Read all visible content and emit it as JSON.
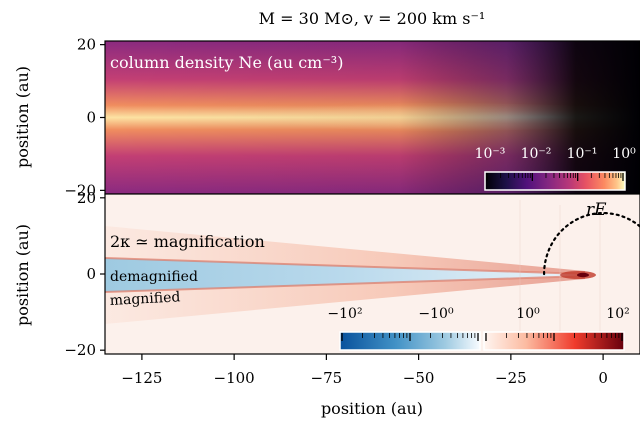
{
  "chart_data": [
    {
      "type": "heatmap",
      "title": "M = 30 M⊙, v = 200 km s⁻¹",
      "xlabel": "",
      "ylabel": "position (au)",
      "xlim": [
        -135,
        10
      ],
      "ylim": [
        -21,
        21
      ],
      "y_ticks": [
        "−20",
        "0",
        "20"
      ],
      "y_tick_values": [
        -20,
        0,
        20
      ],
      "annotation": "column density Ne (au cm⁻³)",
      "colormap": "magma",
      "colorbar": {
        "scale": "log",
        "range": [
          0.001,
          1
        ],
        "tick_labels": [
          "10⁻³",
          "10⁻²",
          "10⁻¹",
          "10⁰"
        ],
        "tick_values": [
          0.001,
          0.01,
          0.1,
          1
        ]
      }
    },
    {
      "type": "heatmap",
      "xlabel": "position (au)",
      "ylabel": "position (au)",
      "xlim": [
        -135,
        10
      ],
      "ylim": [
        -21,
        21
      ],
      "x_ticks": [
        "−125",
        "−100",
        "−75",
        "−50",
        "−25",
        "0"
      ],
      "x_tick_values": [
        -125,
        -100,
        -75,
        -50,
        -25,
        0
      ],
      "y_ticks": [
        "−20",
        "0",
        "20"
      ],
      "y_tick_values": [
        -20,
        0,
        20
      ],
      "annotation": "2κ ≃ magnification",
      "colormap": "RdBu_r",
      "region_labels": [
        "demagnified",
        "magnified"
      ],
      "einstein_radius_label": "rE",
      "einstein_radius_au": 16,
      "colorbar": {
        "scale": "symlog",
        "tick_labels": [
          "−10²",
          "−10⁰",
          "10⁰",
          "10²"
        ],
        "tick_values": [
          -100,
          -1,
          1,
          100
        ]
      }
    }
  ],
  "colors": {
    "magma_dark": "#000004",
    "magma_mid": "#b73779",
    "magma_bright": "#fcfdbf",
    "rdbu_blue": "#08519c",
    "rdbu_red": "#67000d"
  }
}
